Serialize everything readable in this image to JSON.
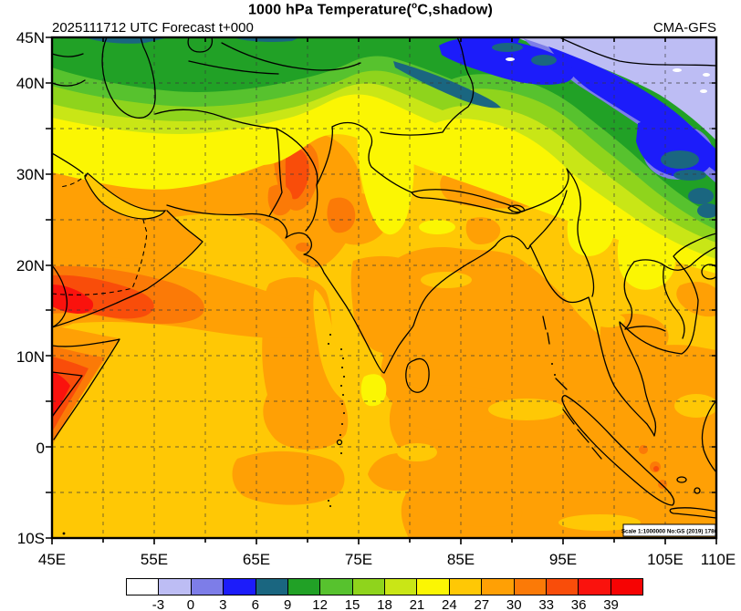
{
  "header": {
    "title_prefix": "1000 hPa Temperature(",
    "title_degree": "o",
    "title_suffix": "C,shadow)",
    "run_label": "2025111712 UTC Forecast t+000",
    "model_label": "CMA-GFS"
  },
  "map": {
    "scale_note": "Scale 1:1000000 No:GS (2019) 1786"
  },
  "axes": {
    "lat_labels": [
      "45N",
      "40N",
      "30N",
      "20N",
      "10N",
      "0",
      "10S"
    ],
    "lon_labels": [
      "45E",
      "55E",
      "65E",
      "75E",
      "85E",
      "95E",
      "105E",
      "110E"
    ]
  },
  "colorbar": {
    "labels": [
      "-3",
      "0",
      "3",
      "6",
      "9",
      "12",
      "15",
      "18",
      "21",
      "24",
      "27",
      "30",
      "33",
      "36",
      "39"
    ],
    "colors": [
      "#FFFFFF",
      "#BDBDF4",
      "#7D7DE8",
      "#1C1CFA",
      "#1A6680",
      "#21A126",
      "#57C22E",
      "#8FD41C",
      "#C9E616",
      "#FBF603",
      "#FFC805",
      "#FFA005",
      "#FB7A07",
      "#F94D0A",
      "#FA120D",
      "#F60303"
    ]
  },
  "chart_data": {
    "type": "heatmap",
    "subtype": "filled-contour temperature map",
    "title": "1000 hPa Temperature(°C,shadow)",
    "model": "CMA-GFS",
    "run": "2025111712 UTC",
    "forecast": "t+000",
    "units": "°C",
    "lon_range_deg_e": [
      45,
      110
    ],
    "lat_range_deg_n": [
      -10,
      45
    ],
    "x_tick_labels": [
      "45E",
      "55E",
      "65E",
      "75E",
      "85E",
      "95E",
      "105E",
      "110E"
    ],
    "y_tick_labels": [
      "45N",
      "40N",
      "30N",
      "20N",
      "10N",
      "0",
      "10S"
    ],
    "contour_levels_c": [
      -3,
      0,
      3,
      6,
      9,
      12,
      15,
      18,
      21,
      24,
      27,
      30,
      33,
      36,
      39
    ],
    "palette_hex": [
      "#FFFFFF",
      "#BDBDF4",
      "#7D7DE8",
      "#1C1CFA",
      "#1A6680",
      "#21A126",
      "#57C22E",
      "#8FD41C",
      "#C9E616",
      "#FBF603",
      "#FFC805",
      "#FFA005",
      "#FB7A07",
      "#F94D0A",
      "#FA120D",
      "#F60303"
    ],
    "graticule": "dashed lines every 5 degrees",
    "scale_note": "Scale 1:1000000 No:GS (2019) 1786",
    "notable_features": [
      {
        "region": "Top-right corner, NW China / Mongolia edge (92-110E, 40-45N)",
        "approx_temp_c": "-3 to 3 (lavender with blue band, small white <-3 spots)"
      },
      {
        "region": "Cold tongue along 38-44N, 75-110E (Tien Shan / Gobi)",
        "approx_temp_c": "3 to 9 (blue and dark teal streaks)"
      },
      {
        "region": "Central Asia band (45-75E, 40-45N)",
        "approx_temp_c": "9 to 15 (greens, coldest at north edge)"
      },
      {
        "region": "Tibetan Plateau / Qinghai (75-95E, 30-38N)",
        "approx_temp_c": "15 to 24 (yellow-green to yellow)"
      },
      {
        "region": "Iran / Afghanistan (45-70E, 30-37N)",
        "approx_temp_c": "18 to 27"
      },
      {
        "region": "Indus Valley hot streak (~67-70E, 26-33N)",
        "approx_temp_c": "30 to 36"
      },
      {
        "region": "Arabian Peninsula interior",
        "approx_temp_c": "27 to 33"
      },
      {
        "region": "Yemen / Gulf of Aden / Somalia horn",
        "approx_temp_c": "33 to 39 (field maximum, red)"
      },
      {
        "region": "Northern Arabian Sea",
        "approx_temp_c": "24 to 27"
      },
      {
        "region": "SW Arabian Sea band (~13-18N)",
        "approx_temp_c": "30 to 36"
      },
      {
        "region": "Peninsular India interior",
        "approx_temp_c": "27 to 30"
      },
      {
        "region": "Bay of Bengal, Andaman Sea, equatorial ocean east of 85E",
        "approx_temp_c": "27 to 30 with 24-27 patches"
      },
      {
        "region": "SW equatorial Indian Ocean (45-75E south of 5N)",
        "approx_temp_c": "24 to 27 with 27-30 patches"
      },
      {
        "region": "Laos / N-Vietnam highlands pocket",
        "approx_temp_c": "21 to 24"
      },
      {
        "region": "SE China edge (105-110E, 25-33N)",
        "approx_temp_c": "9 to 21 gradient toward NE"
      }
    ]
  }
}
